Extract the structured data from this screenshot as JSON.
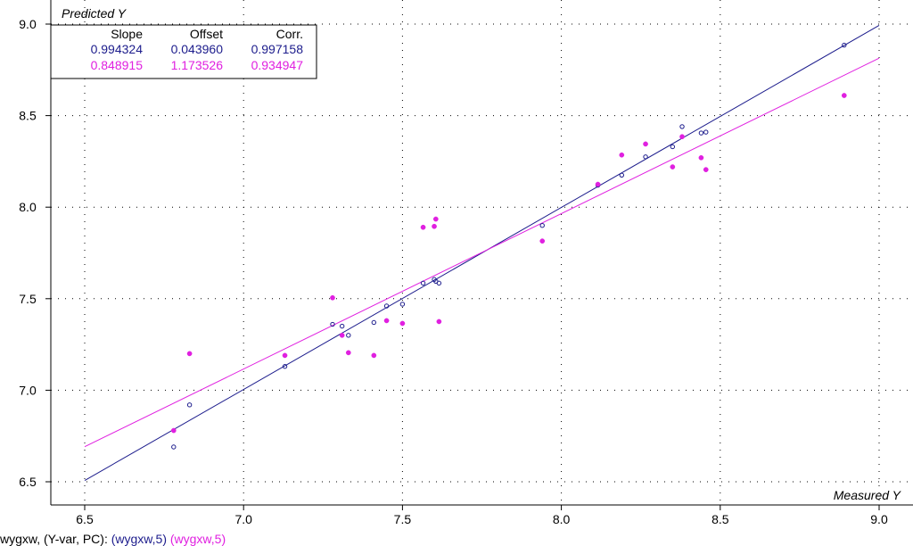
{
  "chart_data": {
    "type": "scatter",
    "xlabel": "Measured Y",
    "ylabel": "Predicted Y",
    "xlim": [
      6.5,
      9.0
    ],
    "ylim": [
      6.5,
      9.0
    ],
    "x_ticks": [
      "6.5",
      "7.0",
      "7.5",
      "8.0",
      "8.5",
      "9.0"
    ],
    "y_ticks": [
      "6.5",
      "7.0",
      "7.5",
      "8.0",
      "8.5",
      "9.0"
    ],
    "grid": true,
    "legend": {
      "placement": "top-left",
      "headers": [
        "Slope",
        "Offset",
        "Corr."
      ],
      "rows": [
        {
          "slope": "0.994324",
          "offset": "0.043960",
          "corr": "0.997158",
          "color": "#1c1c8c"
        },
        {
          "slope": "0.848915",
          "offset": "1.173526",
          "corr": "0.934947",
          "color": "#e020e0"
        }
      ]
    },
    "series": [
      {
        "color": "#1c1c8c",
        "marker": "open-circle",
        "fit": {
          "slope": 0.994324,
          "offset": 0.04396
        },
        "x": [
          6.78,
          6.83,
          7.13,
          7.28,
          7.31,
          7.33,
          7.41,
          7.45,
          7.5,
          7.565,
          7.6,
          7.605,
          7.615,
          7.94,
          8.115,
          8.19,
          8.265,
          8.35,
          8.38,
          8.44,
          8.455,
          8.89
        ],
        "y": [
          6.69,
          6.92,
          7.13,
          7.36,
          7.35,
          7.3,
          7.37,
          7.46,
          7.47,
          7.585,
          7.605,
          7.595,
          7.585,
          7.9,
          8.12,
          8.175,
          8.275,
          8.33,
          8.44,
          8.405,
          8.41,
          8.885
        ]
      },
      {
        "color": "#e020e0",
        "marker": "filled-circle",
        "fit": {
          "slope": 0.848915,
          "offset": 1.173526
        },
        "x": [
          6.78,
          6.83,
          7.13,
          7.28,
          7.31,
          7.33,
          7.41,
          7.45,
          7.5,
          7.565,
          7.6,
          7.605,
          7.615,
          7.94,
          8.115,
          8.19,
          8.265,
          8.35,
          8.38,
          8.44,
          8.455,
          8.89
        ],
        "y": [
          6.78,
          7.2,
          7.19,
          7.505,
          7.3,
          7.205,
          7.19,
          7.38,
          7.365,
          7.89,
          7.895,
          7.935,
          7.375,
          7.815,
          8.125,
          8.285,
          8.345,
          8.22,
          8.385,
          8.27,
          8.205,
          8.61
        ]
      }
    ]
  },
  "footer": {
    "prefix": "wygxw, (Y-var, PC):",
    "series1": "(wygxw,5)",
    "series2": "(wygxw,5)",
    "color1": "#1c1c8c",
    "color2": "#e020e0"
  }
}
